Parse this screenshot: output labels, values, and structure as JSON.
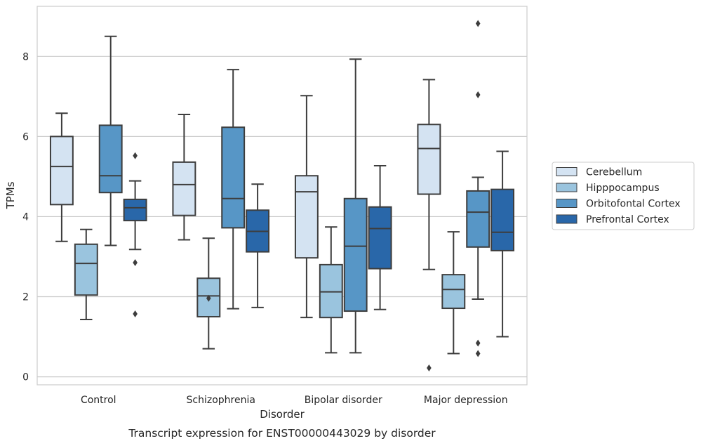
{
  "chart_data": {
    "type": "boxplot",
    "title": "Transcript expression for ENST00000443029 by disorder",
    "xlabel": "Disorder",
    "ylabel": "TPMs",
    "ylim": [
      -0.2,
      9.25
    ],
    "yticks": [
      0,
      2,
      4,
      6,
      8
    ],
    "grid": true,
    "legend_position": "right",
    "categories": [
      "Control",
      "Schizophrenia",
      "Bipolar disorder",
      "Major depression"
    ],
    "series": [
      {
        "name": "Cerebellum",
        "color": "#d4e3f2",
        "boxes": [
          {
            "whislo": 3.38,
            "q1": 4.3,
            "med": 5.25,
            "q3": 6.0,
            "whishi": 6.58,
            "fliers": []
          },
          {
            "whislo": 3.42,
            "q1": 4.03,
            "med": 4.8,
            "q3": 5.36,
            "whishi": 6.55,
            "fliers": []
          },
          {
            "whislo": 1.48,
            "q1": 2.97,
            "med": 4.62,
            "q3": 5.02,
            "whishi": 7.02,
            "fliers": []
          },
          {
            "whislo": 2.68,
            "q1": 4.56,
            "med": 5.7,
            "q3": 6.3,
            "whishi": 7.42,
            "fliers": [
              0.22
            ]
          }
        ]
      },
      {
        "name": "Hipppocampus",
        "color": "#9ac4de",
        "boxes": [
          {
            "whislo": 1.43,
            "q1": 2.04,
            "med": 2.83,
            "q3": 3.31,
            "whishi": 3.68,
            "fliers": []
          },
          {
            "whislo": 0.7,
            "q1": 1.5,
            "med": 2.02,
            "q3": 2.46,
            "whishi": 3.46,
            "fliers": [
              1.96
            ]
          },
          {
            "whislo": 0.6,
            "q1": 1.48,
            "med": 2.12,
            "q3": 2.8,
            "whishi": 3.74,
            "fliers": []
          },
          {
            "whislo": 0.58,
            "q1": 1.71,
            "med": 2.18,
            "q3": 2.55,
            "whishi": 3.62,
            "fliers": []
          }
        ]
      },
      {
        "name": "Orbitofontal Cortex",
        "color": "#5796c6",
        "boxes": [
          {
            "whislo": 3.28,
            "q1": 4.6,
            "med": 5.02,
            "q3": 6.28,
            "whishi": 8.5,
            "fliers": []
          },
          {
            "whislo": 1.7,
            "q1": 3.72,
            "med": 4.45,
            "q3": 6.23,
            "whishi": 7.67,
            "fliers": []
          },
          {
            "whislo": 0.6,
            "q1": 1.64,
            "med": 3.26,
            "q3": 4.45,
            "whishi": 7.93,
            "fliers": []
          },
          {
            "whislo": 1.94,
            "q1": 3.24,
            "med": 4.11,
            "q3": 4.64,
            "whishi": 4.98,
            "fliers": [
              0.84,
              0.58,
              7.04,
              8.82
            ]
          }
        ]
      },
      {
        "name": "Prefrontal Cortex",
        "color": "#2967a9",
        "boxes": [
          {
            "whislo": 3.18,
            "q1": 3.9,
            "med": 4.22,
            "q3": 4.43,
            "whishi": 4.89,
            "fliers": [
              5.52,
              2.85,
              1.57
            ]
          },
          {
            "whislo": 1.73,
            "q1": 3.12,
            "med": 3.63,
            "q3": 4.16,
            "whishi": 4.81,
            "fliers": []
          },
          {
            "whislo": 1.68,
            "q1": 2.7,
            "med": 3.7,
            "q3": 4.24,
            "whishi": 5.27,
            "fliers": []
          },
          {
            "whislo": 1.0,
            "q1": 3.15,
            "med": 3.61,
            "q3": 4.68,
            "whishi": 5.63,
            "fliers": []
          }
        ]
      }
    ]
  }
}
